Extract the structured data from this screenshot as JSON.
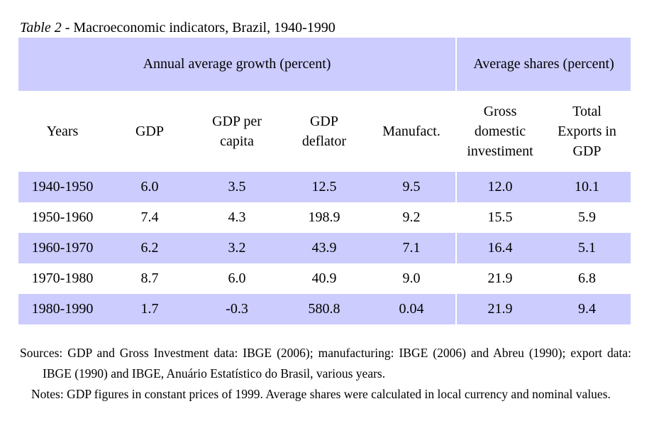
{
  "caption": {
    "label": "Table 2",
    "text": " - Macroeconomic indicators, Brazil, 1940-1990"
  },
  "group_headers": {
    "growth": "Annual average growth (percent)",
    "shares": "Average shares (percent)"
  },
  "columns": {
    "years": "Years",
    "gdp": "GDP",
    "gdp_per_capita": [
      "GDP per",
      "capita"
    ],
    "gdp_deflator": [
      "GDP",
      "deflator"
    ],
    "manufact": "Manufact.",
    "investment": [
      "Gross",
      "domestic",
      "investiment"
    ],
    "exports": [
      "Total",
      "Exports in",
      "GDP"
    ]
  },
  "rows": [
    {
      "years": "1940-1950",
      "gdp": "6.0",
      "gdp_per_capita": "3.5",
      "gdp_deflator": "12.5",
      "manufact": "9.5",
      "investment": "12.0",
      "exports": "10.1"
    },
    {
      "years": "1950-1960",
      "gdp": "7.4",
      "gdp_per_capita": "4.3",
      "gdp_deflator": "198.9",
      "manufact": "9.2",
      "investment": "15.5",
      "exports": "5.9"
    },
    {
      "years": "1960-1970",
      "gdp": "6.2",
      "gdp_per_capita": "3.2",
      "gdp_deflator": "43.9",
      "manufact": "7.1",
      "investment": "16.4",
      "exports": "5.1"
    },
    {
      "years": "1970-1980",
      "gdp": "8.7",
      "gdp_per_capita": "6.0",
      "gdp_deflator": "40.9",
      "manufact": "9.0",
      "investment": "21.9",
      "exports": "6.8"
    },
    {
      "years": "1980-1990",
      "gdp": "1.7",
      "gdp_per_capita": "-0.3",
      "gdp_deflator": "580.8",
      "manufact": "0.04",
      "investment": "21.9",
      "exports": "9.4"
    }
  ],
  "notes": {
    "sources": "Sources: GDP and Gross Investment data: IBGE (2006); manufacturing: IBGE (2006) and Abreu (1990); export data: IBGE (1990) and IBGE, Anuário Estatístico do Brasil, various years.",
    "notes": "Notes: GDP figures in constant prices of 1999. Average shares were calculated in local currency and nominal values."
  },
  "colors": {
    "shade": "#ccccff"
  }
}
